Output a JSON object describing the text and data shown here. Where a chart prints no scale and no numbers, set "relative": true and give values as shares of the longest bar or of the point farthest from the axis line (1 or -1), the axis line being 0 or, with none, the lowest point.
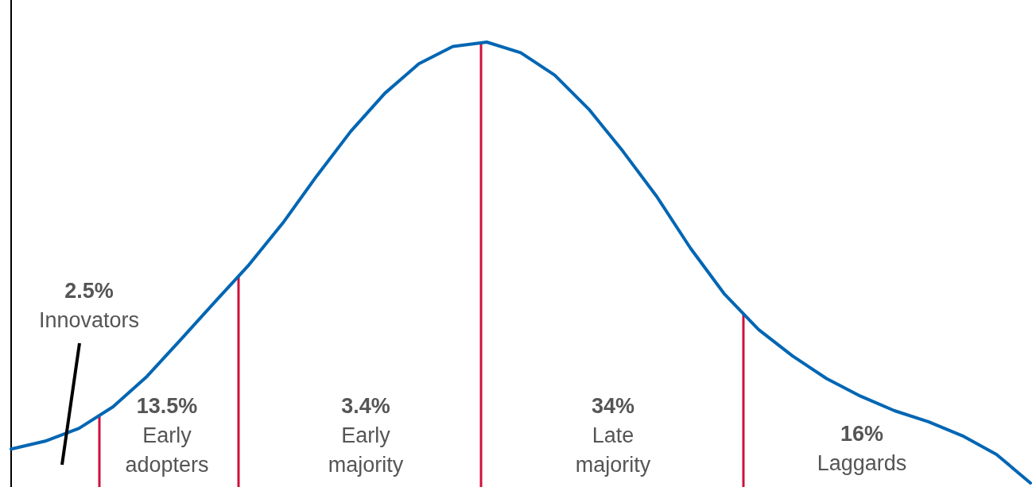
{
  "chart_data": {
    "type": "line",
    "relative": true,
    "marker": "none",
    "line_style": "solid",
    "categories": [
      null,
      null,
      null,
      null,
      null,
      null,
      null,
      null,
      null,
      null,
      null,
      null,
      null,
      null,
      null,
      null,
      null,
      null,
      null,
      null,
      null,
      null,
      null,
      null,
      null,
      null,
      null,
      null,
      null,
      null,
      null
    ],
    "series": [
      {
        "color": "#0066b3",
        "values": [
          0.077,
          0.095,
          0.124,
          0.173,
          0.242,
          0.326,
          0.411,
          0.495,
          0.59,
          0.697,
          0.798,
          0.884,
          0.951,
          0.99,
          1,
          0.976,
          0.925,
          0.848,
          0.753,
          0.65,
          0.532,
          0.428,
          0.348,
          0.288,
          0.237,
          0.197,
          0.164,
          0.139,
          0.107,
          0.065,
          0
        ]
      }
    ],
    "annotations": [
      "2.5%\nInnovators",
      "13.5%\nEarly\nadopters",
      "3.4%\nEarly\nmajority",
      "34%\nLate\nmajority",
      "16%\nLaggards"
    ]
  }
}
